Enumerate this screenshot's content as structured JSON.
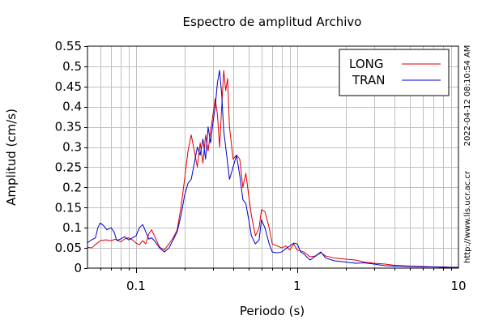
{
  "chart_data": {
    "type": "line",
    "title": "Espectro de amplitud Archivo",
    "xlabel": "Periodo (s)",
    "ylabel": "Amplitud (cm/s)",
    "xscale": "log",
    "xlim": [
      0.05,
      10
    ],
    "ylim": [
      0,
      0.55
    ],
    "xticks": [
      {
        "value": 0.1,
        "label": "0.1"
      },
      {
        "value": 1,
        "label": "1"
      },
      {
        "value": 10,
        "label": "10"
      }
    ],
    "yticks": [
      {
        "value": 0,
        "label": "0"
      },
      {
        "value": 0.05,
        "label": "0.05"
      },
      {
        "value": 0.1,
        "label": "0.1"
      },
      {
        "value": 0.15,
        "label": "0.15"
      },
      {
        "value": 0.2,
        "label": "0.2"
      },
      {
        "value": 0.25,
        "label": "0.25"
      },
      {
        "value": 0.3,
        "label": "0.3"
      },
      {
        "value": 0.35,
        "label": "0.35"
      },
      {
        "value": 0.4,
        "label": "0.4"
      },
      {
        "value": 0.45,
        "label": "0.45"
      },
      {
        "value": 0.5,
        "label": "0.5"
      },
      {
        "value": 0.55,
        "label": "0.55"
      }
    ],
    "grid": true,
    "legend_position": "top-right",
    "side_text_upper": "2022-04-12 08:10:54 AM",
    "side_text_lower": "http://www.lis.ucr.ac.cr",
    "series": [
      {
        "name": "LONG",
        "color": "#dd0000",
        "points": [
          [
            0.05,
            0.052
          ],
          [
            0.053,
            0.05
          ],
          [
            0.056,
            0.058
          ],
          [
            0.06,
            0.068
          ],
          [
            0.065,
            0.07
          ],
          [
            0.07,
            0.068
          ],
          [
            0.075,
            0.072
          ],
          [
            0.08,
            0.065
          ],
          [
            0.085,
            0.072
          ],
          [
            0.09,
            0.075
          ],
          [
            0.095,
            0.07
          ],
          [
            0.1,
            0.062
          ],
          [
            0.105,
            0.058
          ],
          [
            0.11,
            0.068
          ],
          [
            0.115,
            0.06
          ],
          [
            0.12,
            0.085
          ],
          [
            0.125,
            0.095
          ],
          [
            0.13,
            0.08
          ],
          [
            0.14,
            0.052
          ],
          [
            0.15,
            0.045
          ],
          [
            0.16,
            0.06
          ],
          [
            0.17,
            0.075
          ],
          [
            0.18,
            0.095
          ],
          [
            0.19,
            0.15
          ],
          [
            0.2,
            0.22
          ],
          [
            0.21,
            0.29
          ],
          [
            0.22,
            0.33
          ],
          [
            0.23,
            0.29
          ],
          [
            0.24,
            0.25
          ],
          [
            0.25,
            0.31
          ],
          [
            0.26,
            0.26
          ],
          [
            0.27,
            0.33
          ],
          [
            0.28,
            0.29
          ],
          [
            0.29,
            0.34
          ],
          [
            0.3,
            0.38
          ],
          [
            0.31,
            0.42
          ],
          [
            0.32,
            0.38
          ],
          [
            0.33,
            0.3
          ],
          [
            0.34,
            0.4
          ],
          [
            0.35,
            0.49
          ],
          [
            0.36,
            0.44
          ],
          [
            0.37,
            0.47
          ],
          [
            0.38,
            0.35
          ],
          [
            0.4,
            0.27
          ],
          [
            0.42,
            0.28
          ],
          [
            0.44,
            0.27
          ],
          [
            0.46,
            0.2
          ],
          [
            0.48,
            0.235
          ],
          [
            0.5,
            0.18
          ],
          [
            0.52,
            0.13
          ],
          [
            0.55,
            0.08
          ],
          [
            0.58,
            0.1
          ],
          [
            0.6,
            0.145
          ],
          [
            0.63,
            0.14
          ],
          [
            0.67,
            0.1
          ],
          [
            0.7,
            0.06
          ],
          [
            0.75,
            0.055
          ],
          [
            0.8,
            0.05
          ],
          [
            0.85,
            0.055
          ],
          [
            0.9,
            0.045
          ],
          [
            0.95,
            0.06
          ],
          [
            1.0,
            0.045
          ],
          [
            1.1,
            0.04
          ],
          [
            1.2,
            0.028
          ],
          [
            1.3,
            0.03
          ],
          [
            1.4,
            0.038
          ],
          [
            1.5,
            0.03
          ],
          [
            1.7,
            0.025
          ],
          [
            2.0,
            0.022
          ],
          [
            2.3,
            0.02
          ],
          [
            2.6,
            0.015
          ],
          [
            3.0,
            0.012
          ],
          [
            3.5,
            0.01
          ],
          [
            4.0,
            0.007
          ],
          [
            5.0,
            0.005
          ],
          [
            6.0,
            0.004
          ],
          [
            7.0,
            0.003
          ],
          [
            8.0,
            0.003
          ],
          [
            9.0,
            0.002
          ],
          [
            10.0,
            0.002
          ]
        ]
      },
      {
        "name": "TRAN",
        "color": "#0000cc",
        "points": [
          [
            0.05,
            0.063
          ],
          [
            0.053,
            0.07
          ],
          [
            0.056,
            0.075
          ],
          [
            0.058,
            0.1
          ],
          [
            0.06,
            0.112
          ],
          [
            0.063,
            0.105
          ],
          [
            0.066,
            0.095
          ],
          [
            0.07,
            0.1
          ],
          [
            0.073,
            0.09
          ],
          [
            0.076,
            0.068
          ],
          [
            0.08,
            0.072
          ],
          [
            0.085,
            0.078
          ],
          [
            0.09,
            0.07
          ],
          [
            0.095,
            0.075
          ],
          [
            0.1,
            0.08
          ],
          [
            0.105,
            0.1
          ],
          [
            0.11,
            0.108
          ],
          [
            0.115,
            0.09
          ],
          [
            0.12,
            0.072
          ],
          [
            0.125,
            0.075
          ],
          [
            0.13,
            0.068
          ],
          [
            0.14,
            0.05
          ],
          [
            0.15,
            0.04
          ],
          [
            0.16,
            0.05
          ],
          [
            0.17,
            0.07
          ],
          [
            0.18,
            0.09
          ],
          [
            0.19,
            0.13
          ],
          [
            0.2,
            0.18
          ],
          [
            0.21,
            0.21
          ],
          [
            0.22,
            0.22
          ],
          [
            0.23,
            0.26
          ],
          [
            0.24,
            0.3
          ],
          [
            0.25,
            0.28
          ],
          [
            0.26,
            0.32
          ],
          [
            0.27,
            0.27
          ],
          [
            0.28,
            0.35
          ],
          [
            0.29,
            0.31
          ],
          [
            0.3,
            0.36
          ],
          [
            0.31,
            0.4
          ],
          [
            0.32,
            0.46
          ],
          [
            0.33,
            0.49
          ],
          [
            0.34,
            0.43
          ],
          [
            0.35,
            0.34
          ],
          [
            0.36,
            0.3
          ],
          [
            0.37,
            0.26
          ],
          [
            0.38,
            0.22
          ],
          [
            0.4,
            0.25
          ],
          [
            0.42,
            0.28
          ],
          [
            0.44,
            0.23
          ],
          [
            0.46,
            0.17
          ],
          [
            0.48,
            0.16
          ],
          [
            0.5,
            0.12
          ],
          [
            0.52,
            0.08
          ],
          [
            0.55,
            0.06
          ],
          [
            0.58,
            0.07
          ],
          [
            0.6,
            0.12
          ],
          [
            0.63,
            0.1
          ],
          [
            0.67,
            0.06
          ],
          [
            0.7,
            0.04
          ],
          [
            0.75,
            0.038
          ],
          [
            0.8,
            0.04
          ],
          [
            0.85,
            0.048
          ],
          [
            0.9,
            0.055
          ],
          [
            0.95,
            0.062
          ],
          [
            1.0,
            0.06
          ],
          [
            1.05,
            0.04
          ],
          [
            1.1,
            0.035
          ],
          [
            1.2,
            0.02
          ],
          [
            1.3,
            0.03
          ],
          [
            1.4,
            0.04
          ],
          [
            1.5,
            0.025
          ],
          [
            1.7,
            0.018
          ],
          [
            2.0,
            0.015
          ],
          [
            2.3,
            0.012
          ],
          [
            2.6,
            0.013
          ],
          [
            3.0,
            0.01
          ],
          [
            3.5,
            0.006
          ],
          [
            4.0,
            0.005
          ],
          [
            5.0,
            0.004
          ],
          [
            6.0,
            0.003
          ],
          [
            7.0,
            0.003
          ],
          [
            8.0,
            0.002
          ],
          [
            9.0,
            0.002
          ],
          [
            10.0,
            0.002
          ]
        ]
      }
    ]
  }
}
